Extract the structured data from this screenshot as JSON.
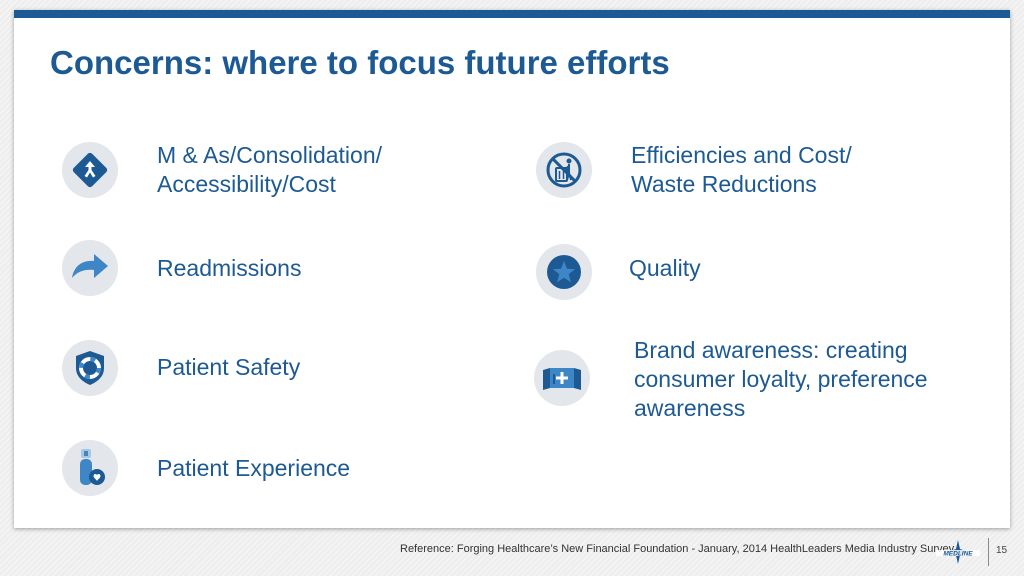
{
  "title": "Concerns: where to focus future efforts",
  "items_left": [
    {
      "icon": "merge-arrows-icon",
      "lines": [
        "M & As/Consolidation/",
        "Accessibility/Cost"
      ]
    },
    {
      "icon": "curved-arrow-icon",
      "lines": [
        "Readmissions"
      ]
    },
    {
      "icon": "lifebuoy-shield-icon",
      "lines": [
        "Patient Safety"
      ]
    },
    {
      "icon": "patient-heart-icon",
      "lines": [
        "Patient Experience"
      ]
    }
  ],
  "items_right": [
    {
      "icon": "no-waste-bin-icon",
      "lines": [
        "Efficiencies and Cost/",
        "Waste Reductions"
      ]
    },
    {
      "icon": "star-icon",
      "lines": [
        "Quality"
      ]
    },
    {
      "icon": "brand-banner-icon",
      "lines": [
        "Brand awareness: creating",
        "consumer loyalty, preference",
        "awareness"
      ]
    }
  ],
  "footer": {
    "reference": "Reference: Forging Healthcare’s New Financial Foundation - January, 2014 HealthLeaders Media Industry Survey",
    "logo_text": "MEDLINE",
    "page_number": "15"
  },
  "colors": {
    "accent": "#1d5a93",
    "icon_circle": "#e3e6ea",
    "icon_blue": "#3f86c6"
  }
}
